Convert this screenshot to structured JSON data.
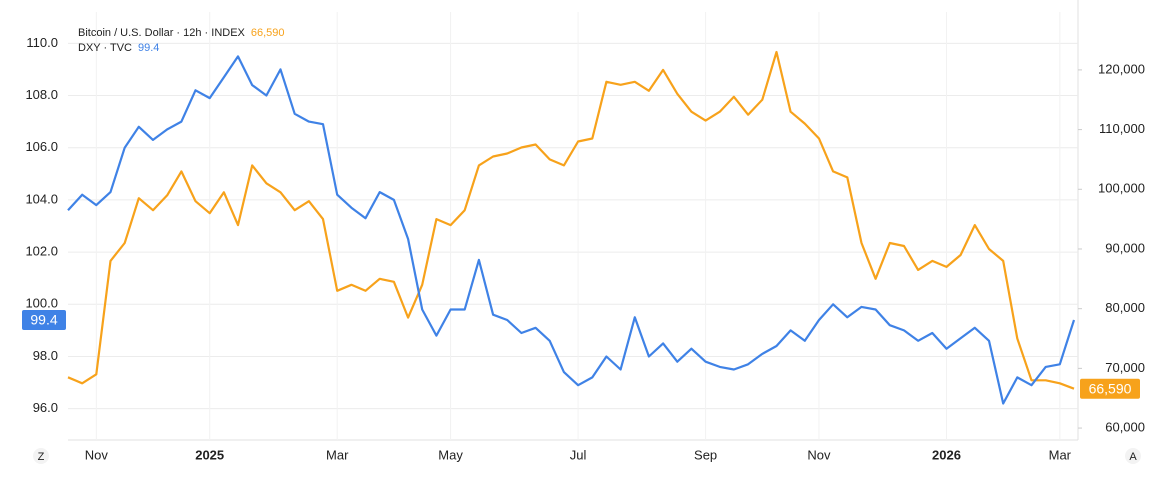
{
  "chart_data": {
    "type": "line",
    "categories": [
      null,
      null,
      "Nov",
      null,
      null,
      null,
      null,
      null,
      null,
      null,
      "2025",
      null,
      null,
      null,
      null,
      null,
      null,
      null,
      null,
      "Mar",
      null,
      null,
      null,
      null,
      null,
      null,
      null,
      "May",
      null,
      null,
      null,
      null,
      null,
      null,
      null,
      null,
      "Jul",
      null,
      null,
      null,
      null,
      null,
      null,
      null,
      null,
      "Sep",
      null,
      null,
      null,
      null,
      null,
      null,
      null,
      "Nov",
      null,
      null,
      null,
      null,
      null,
      null,
      null,
      null,
      "2026",
      null,
      null,
      null,
      null,
      null,
      null,
      null,
      "Mar",
      null
    ],
    "ylim": [
      94.8,
      111.2
    ],
    "yticks": [
      {
        "value": 96,
        "label": "96.0"
      },
      {
        "value": 98,
        "label": "98.0"
      },
      {
        "value": 100,
        "label": "100.0"
      },
      {
        "value": 102,
        "label": "102.0"
      },
      {
        "value": 104,
        "label": "104.0"
      },
      {
        "value": 106,
        "label": "106.0"
      },
      {
        "value": 108,
        "label": "108.0"
      },
      {
        "value": 110,
        "label": "110.0"
      }
    ],
    "y2lim": [
      58000,
      129700
    ],
    "y2ticks": [
      {
        "value": 60000,
        "label": "60,000"
      },
      {
        "value": 70000,
        "label": "70,000"
      },
      {
        "value": 80000,
        "label": "80,000"
      },
      {
        "value": 90000,
        "label": "90,000"
      },
      {
        "value": 100000,
        "label": "100,000"
      },
      {
        "value": 110000,
        "label": "110,000"
      },
      {
        "value": 120000,
        "label": "120,000"
      }
    ],
    "grid": true,
    "controls": [
      "Z",
      "A"
    ],
    "series": [
      {
        "name": "Bitcoin / U.S. Dollar · 12h · INDEX",
        "color": "#f7a21b",
        "axis": "y2",
        "last_value_label": "66,590",
        "values": [
          68500,
          67500,
          69000,
          88000,
          91000,
          98500,
          96500,
          99000,
          103000,
          98000,
          96000,
          99500,
          94000,
          104000,
          101000,
          99500,
          96500,
          98000,
          95000,
          83000,
          84000,
          83000,
          85000,
          84500,
          78500,
          84000,
          95000,
          94000,
          96500,
          104000,
          105500,
          106000,
          107000,
          107500,
          105000,
          104000,
          108000,
          108500,
          118000,
          117500,
          118000,
          116500,
          120000,
          116000,
          113000,
          111500,
          113000,
          115500,
          112500,
          115000,
          123000,
          113000,
          111000,
          108500,
          103000,
          102000,
          91000,
          85000,
          91000,
          90500,
          86500,
          88000,
          87000,
          89000,
          94000,
          90000,
          88000,
          75000,
          68000,
          68000,
          67500,
          66590
        ]
      },
      {
        "name": "DXY · TVC",
        "color": "#3f82e6",
        "axis": "y",
        "last_value_label": "99.4",
        "values": [
          103.6,
          104.2,
          103.8,
          104.3,
          106.0,
          106.8,
          106.3,
          106.7,
          107.0,
          108.2,
          107.9,
          108.7,
          109.5,
          108.4,
          108.0,
          109.0,
          107.3,
          107.0,
          106.9,
          104.2,
          103.7,
          103.3,
          104.3,
          104.0,
          102.5,
          99.8,
          98.8,
          99.8,
          99.8,
          101.7,
          99.6,
          99.4,
          98.9,
          99.1,
          98.6,
          97.4,
          96.9,
          97.2,
          98.0,
          97.5,
          99.5,
          98.0,
          98.5,
          97.8,
          98.3,
          97.8,
          97.6,
          97.5,
          97.7,
          98.1,
          98.4,
          99.0,
          98.6,
          99.4,
          100.0,
          99.5,
          99.9,
          99.8,
          99.2,
          99.0,
          98.6,
          98.9,
          98.3,
          98.7,
          99.1,
          98.6,
          96.2,
          97.2,
          96.9,
          97.6,
          97.7,
          99.4
        ]
      }
    ]
  }
}
